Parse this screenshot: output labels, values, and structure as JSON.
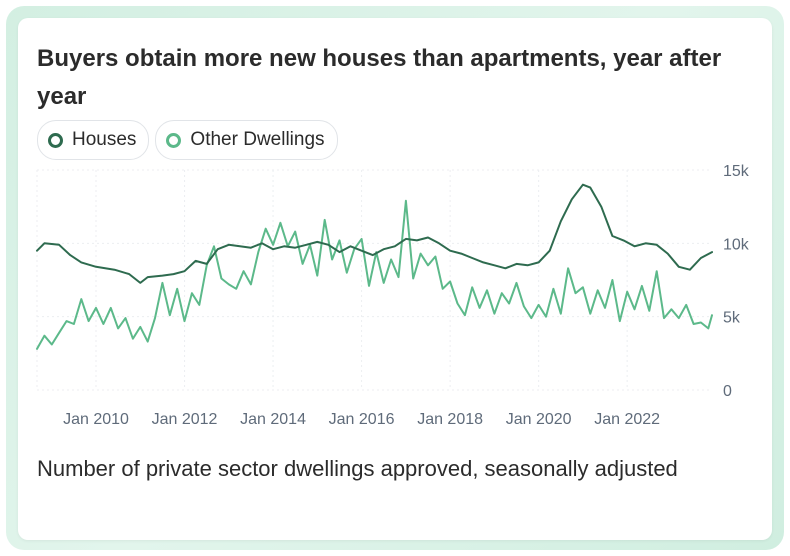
{
  "title": "Buyers obtain more new houses than apartments, year after year",
  "subtitle": "Number of private sector dwellings approved, seasonally adjusted",
  "legend": [
    {
      "label": "Houses",
      "color": "#2e6b4f"
    },
    {
      "label": "Other Dwellings",
      "color": "#5cb98a"
    }
  ],
  "chart_data": {
    "type": "line",
    "xlabel": "",
    "ylabel": "",
    "x_start": "2008-09",
    "x_end": "2023-12",
    "ylim": [
      0,
      15000
    ],
    "grid": true,
    "legend_position": "top-left",
    "x_tick_labels": [
      "Jan 2010",
      "Jan 2012",
      "Jan 2014",
      "Jan 2016",
      "Jan 2018",
      "Jan 2020",
      "Jan 2022"
    ],
    "y_ticks": [
      {
        "value": 0,
        "label": "0"
      },
      {
        "value": 5000,
        "label": "5k"
      },
      {
        "value": 10000,
        "label": "10k"
      },
      {
        "value": 15000,
        "label": "15k"
      }
    ],
    "series": [
      {
        "name": "Houses",
        "color": "#2e6b4f",
        "points": [
          [
            "2008-09",
            9500
          ],
          [
            "2008-11",
            10000
          ],
          [
            "2009-03",
            9900
          ],
          [
            "2009-06",
            9200
          ],
          [
            "2009-09",
            8700
          ],
          [
            "2010-01",
            8400
          ],
          [
            "2010-06",
            8200
          ],
          [
            "2010-10",
            7900
          ],
          [
            "2011-01",
            7300
          ],
          [
            "2011-03",
            7700
          ],
          [
            "2011-07",
            7800
          ],
          [
            "2011-10",
            7900
          ],
          [
            "2012-01",
            8100
          ],
          [
            "2012-04",
            8800
          ],
          [
            "2012-07",
            8600
          ],
          [
            "2012-10",
            9600
          ],
          [
            "2013-01",
            9900
          ],
          [
            "2013-04",
            9800
          ],
          [
            "2013-07",
            9700
          ],
          [
            "2013-10",
            10000
          ],
          [
            "2014-01",
            9600
          ],
          [
            "2014-04",
            9800
          ],
          [
            "2014-07",
            9700
          ],
          [
            "2014-10",
            9900
          ],
          [
            "2015-01",
            10100
          ],
          [
            "2015-04",
            9900
          ],
          [
            "2015-07",
            9400
          ],
          [
            "2015-10",
            9800
          ],
          [
            "2016-01",
            9500
          ],
          [
            "2016-04",
            9200
          ],
          [
            "2016-07",
            9600
          ],
          [
            "2016-10",
            9800
          ],
          [
            "2017-01",
            10300
          ],
          [
            "2017-04",
            10200
          ],
          [
            "2017-07",
            10400
          ],
          [
            "2017-10",
            10000
          ],
          [
            "2018-01",
            9500
          ],
          [
            "2018-04",
            9300
          ],
          [
            "2018-07",
            9000
          ],
          [
            "2018-10",
            8700
          ],
          [
            "2019-01",
            8500
          ],
          [
            "2019-04",
            8300
          ],
          [
            "2019-07",
            8600
          ],
          [
            "2019-10",
            8500
          ],
          [
            "2020-01",
            8700
          ],
          [
            "2020-04",
            9500
          ],
          [
            "2020-07",
            11500
          ],
          [
            "2020-10",
            13000
          ],
          [
            "2021-01",
            14000
          ],
          [
            "2021-03",
            13800
          ],
          [
            "2021-06",
            12500
          ],
          [
            "2021-09",
            10500
          ],
          [
            "2021-12",
            10200
          ],
          [
            "2022-03",
            9800
          ],
          [
            "2022-06",
            10000
          ],
          [
            "2022-09",
            9900
          ],
          [
            "2022-12",
            9300
          ],
          [
            "2023-03",
            8400
          ],
          [
            "2023-06",
            8200
          ],
          [
            "2023-09",
            9000
          ],
          [
            "2023-12",
            9400
          ]
        ]
      },
      {
        "name": "Other Dwellings",
        "color": "#5cb98a",
        "points": [
          [
            "2008-09",
            2800
          ],
          [
            "2008-11",
            3700
          ],
          [
            "2009-01",
            3100
          ],
          [
            "2009-03",
            3900
          ],
          [
            "2009-05",
            4700
          ],
          [
            "2009-07",
            4500
          ],
          [
            "2009-09",
            6200
          ],
          [
            "2009-11",
            4700
          ],
          [
            "2010-01",
            5600
          ],
          [
            "2010-03",
            4500
          ],
          [
            "2010-05",
            5600
          ],
          [
            "2010-07",
            4200
          ],
          [
            "2010-09",
            4900
          ],
          [
            "2010-11",
            3500
          ],
          [
            "2011-01",
            4300
          ],
          [
            "2011-03",
            3300
          ],
          [
            "2011-05",
            4900
          ],
          [
            "2011-07",
            7300
          ],
          [
            "2011-09",
            5100
          ],
          [
            "2011-11",
            6900
          ],
          [
            "2012-01",
            4700
          ],
          [
            "2012-03",
            6600
          ],
          [
            "2012-05",
            5800
          ],
          [
            "2012-07",
            8500
          ],
          [
            "2012-09",
            9800
          ],
          [
            "2012-11",
            7600
          ],
          [
            "2013-01",
            7200
          ],
          [
            "2013-03",
            6900
          ],
          [
            "2013-05",
            8100
          ],
          [
            "2013-07",
            7200
          ],
          [
            "2013-09",
            9400
          ],
          [
            "2013-11",
            11000
          ],
          [
            "2014-01",
            9900
          ],
          [
            "2014-03",
            11400
          ],
          [
            "2014-05",
            9800
          ],
          [
            "2014-07",
            10800
          ],
          [
            "2014-09",
            8600
          ],
          [
            "2014-11",
            9900
          ],
          [
            "2015-01",
            7800
          ],
          [
            "2015-03",
            11600
          ],
          [
            "2015-05",
            8900
          ],
          [
            "2015-07",
            10200
          ],
          [
            "2015-09",
            8000
          ],
          [
            "2015-11",
            9600
          ],
          [
            "2016-01",
            10300
          ],
          [
            "2016-03",
            7100
          ],
          [
            "2016-05",
            9400
          ],
          [
            "2016-07",
            7300
          ],
          [
            "2016-09",
            8900
          ],
          [
            "2016-11",
            7700
          ],
          [
            "2017-01",
            12900
          ],
          [
            "2017-03",
            7600
          ],
          [
            "2017-05",
            9300
          ],
          [
            "2017-07",
            8500
          ],
          [
            "2017-09",
            9100
          ],
          [
            "2017-11",
            6900
          ],
          [
            "2018-01",
            7400
          ],
          [
            "2018-03",
            5900
          ],
          [
            "2018-05",
            5100
          ],
          [
            "2018-07",
            7000
          ],
          [
            "2018-09",
            5600
          ],
          [
            "2018-11",
            6800
          ],
          [
            "2019-01",
            5200
          ],
          [
            "2019-03",
            6600
          ],
          [
            "2019-05",
            5900
          ],
          [
            "2019-07",
            7300
          ],
          [
            "2019-09",
            5700
          ],
          [
            "2019-11",
            4900
          ],
          [
            "2020-01",
            5800
          ],
          [
            "2020-03",
            5000
          ],
          [
            "2020-05",
            6900
          ],
          [
            "2020-07",
            5200
          ],
          [
            "2020-09",
            8300
          ],
          [
            "2020-11",
            6600
          ],
          [
            "2021-01",
            7000
          ],
          [
            "2021-03",
            5200
          ],
          [
            "2021-05",
            6800
          ],
          [
            "2021-07",
            5600
          ],
          [
            "2021-09",
            7500
          ],
          [
            "2021-11",
            4700
          ],
          [
            "2022-01",
            6700
          ],
          [
            "2022-03",
            5500
          ],
          [
            "2022-05",
            7100
          ],
          [
            "2022-07",
            5400
          ],
          [
            "2022-09",
            8100
          ],
          [
            "2022-11",
            4900
          ],
          [
            "2023-01",
            5500
          ],
          [
            "2023-03",
            4900
          ],
          [
            "2023-05",
            5800
          ],
          [
            "2023-07",
            4500
          ],
          [
            "2023-09",
            4600
          ],
          [
            "2023-11",
            4200
          ],
          [
            "2023-12",
            5100
          ]
        ]
      }
    ]
  }
}
